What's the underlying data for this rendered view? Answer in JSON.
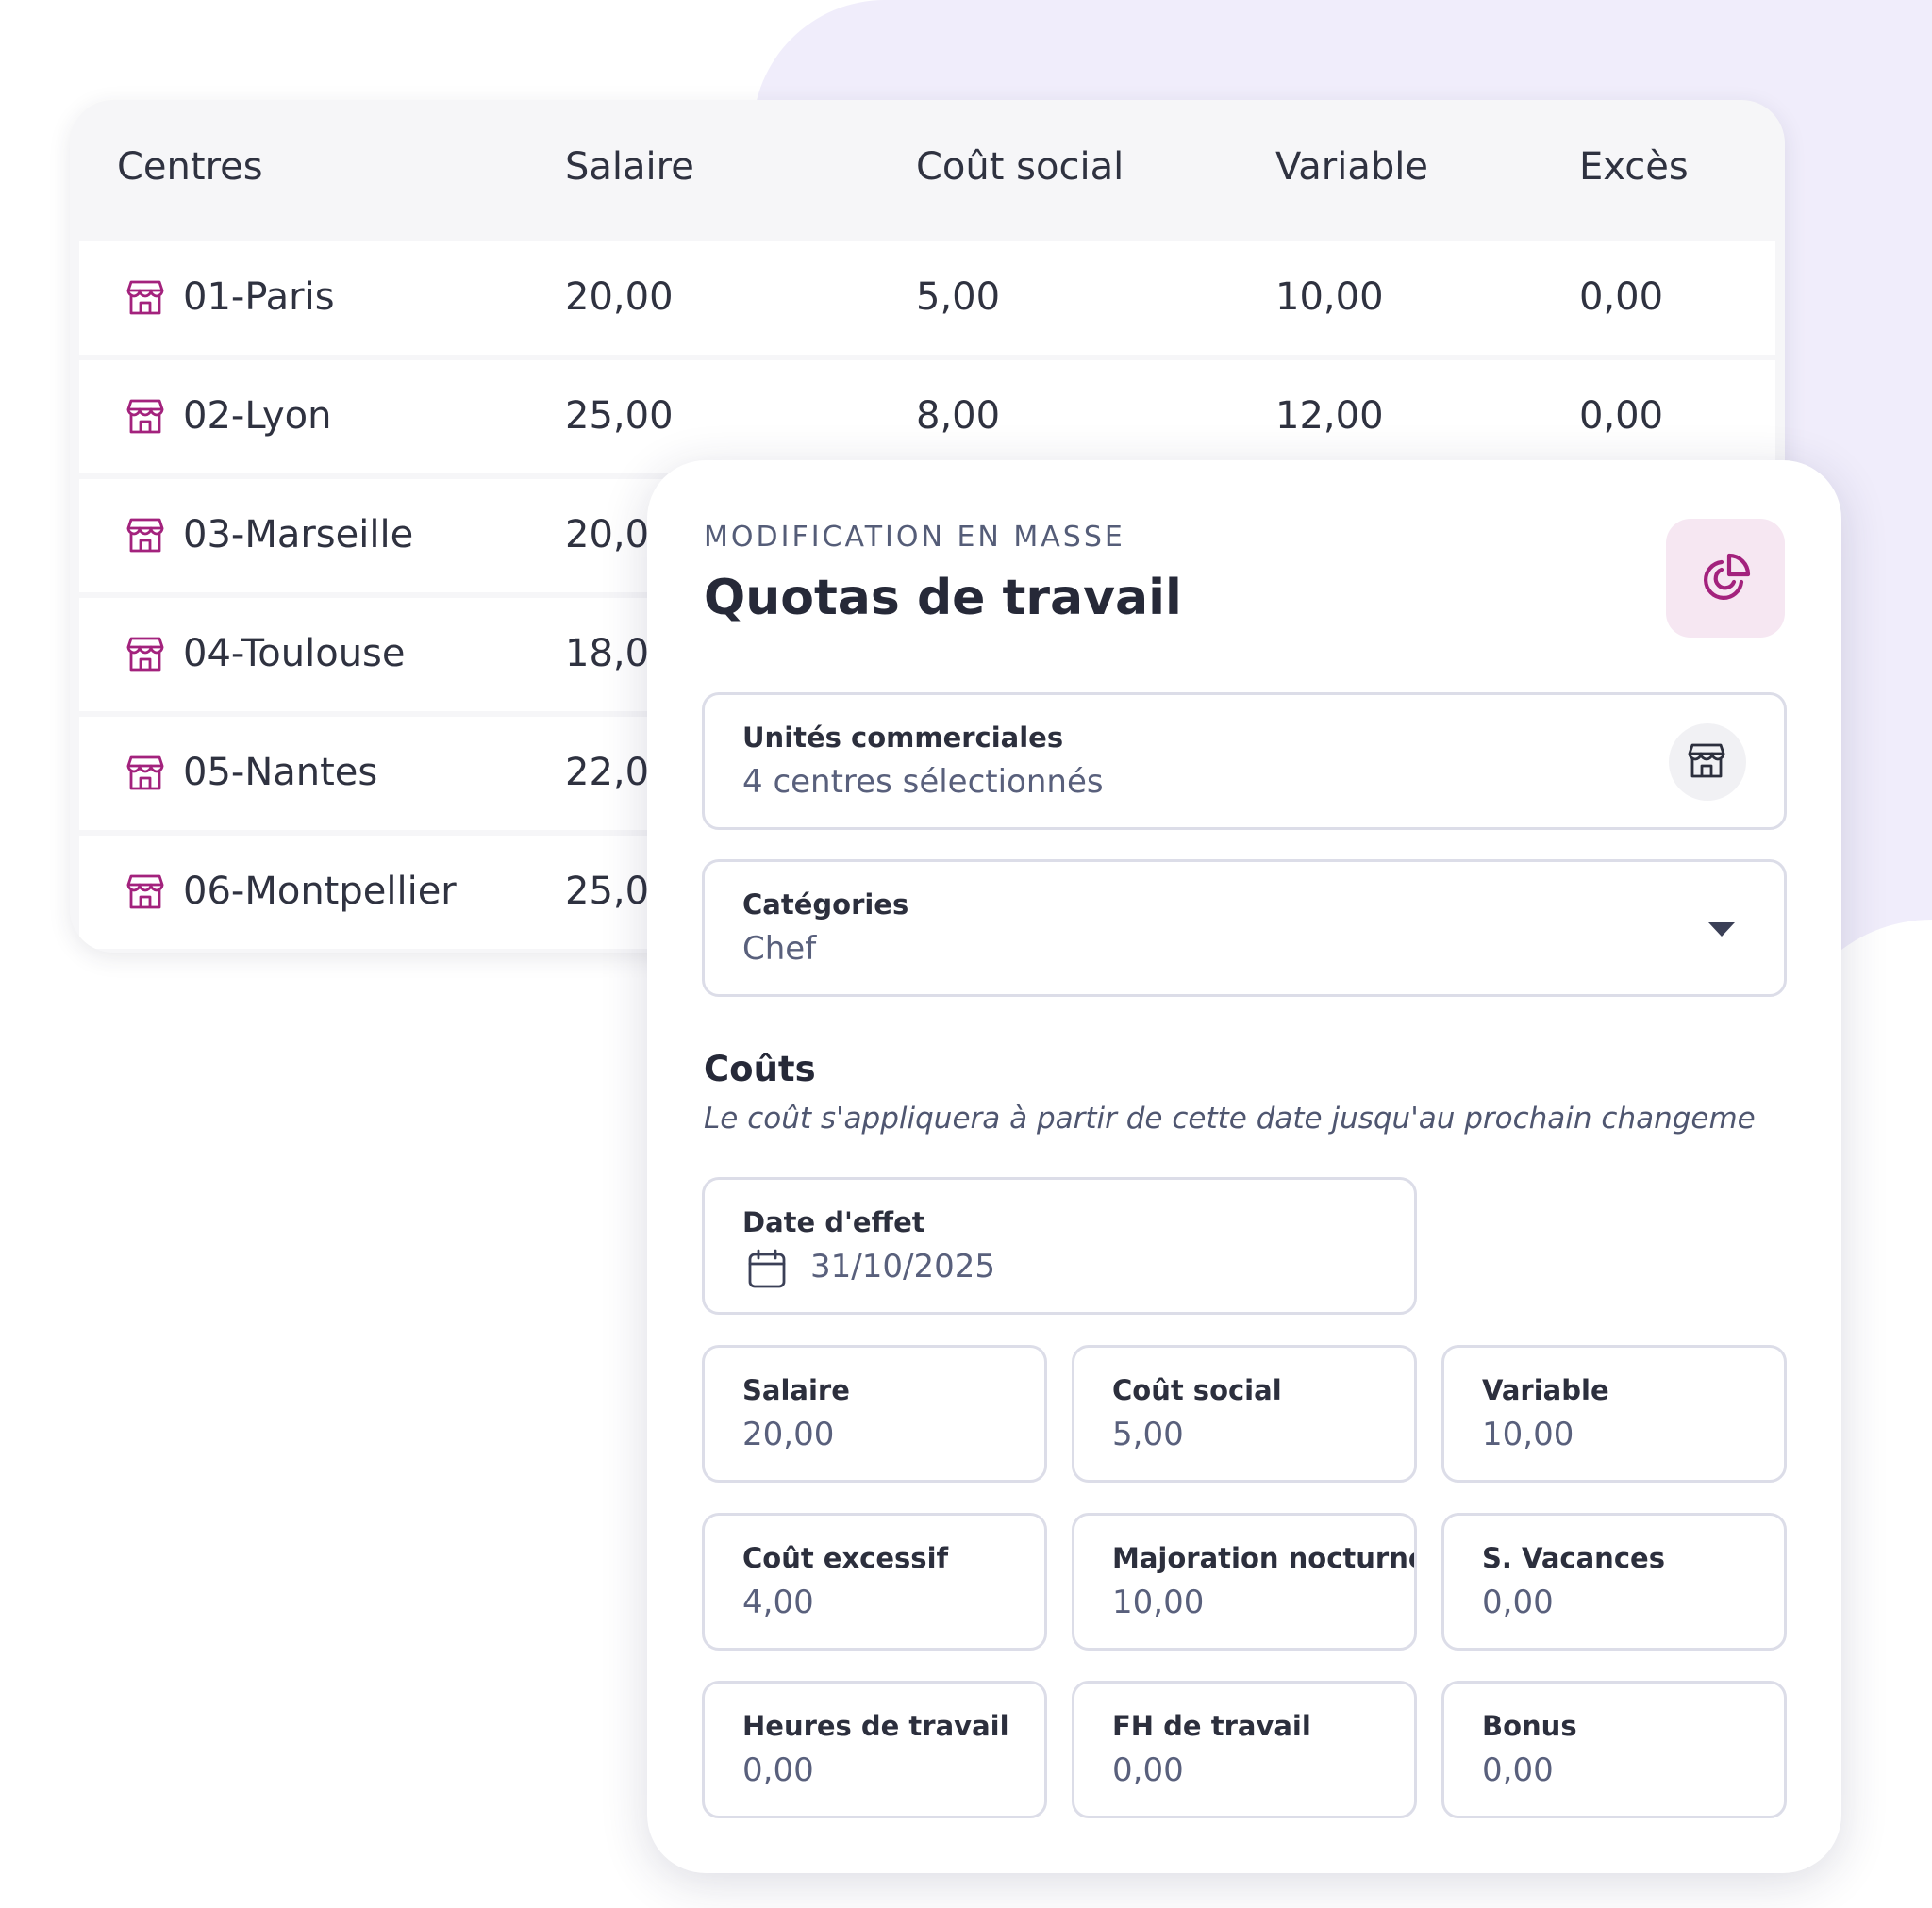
{
  "table": {
    "headers": [
      "Centres",
      "Salaire",
      "Coût social",
      "Variable",
      "Excès"
    ],
    "rows": [
      {
        "centre": "01-Paris",
        "salaire": "20,00",
        "cout_social": "5,00",
        "variable": "10,00",
        "exces": "0,00"
      },
      {
        "centre": "02-Lyon",
        "salaire": "25,00",
        "cout_social": "8,00",
        "variable": "12,00",
        "exces": "0,00"
      },
      {
        "centre": "03-Marseille",
        "salaire": "20,0"
      },
      {
        "centre": "04-Toulouse",
        "salaire": "18,0("
      },
      {
        "centre": "05-Nantes",
        "salaire": "22,0("
      },
      {
        "centre": "06-Montpellier",
        "salaire": "25,0("
      }
    ],
    "row_icon": "store-icon"
  },
  "modal": {
    "eyebrow": "MODIFICATION EN MASSE",
    "title": "Quotas de travail",
    "action_icon": "pie-chart-icon",
    "units": {
      "label": "Unités commerciales",
      "value": "4 centres sélectionnés",
      "icon": "store-icon"
    },
    "categories": {
      "label": "Catégories",
      "value": "Chef",
      "icon": "caret-down-icon"
    },
    "costs": {
      "title": "Coûts",
      "note": "Le coût s'appliquera à partir de cette date jusqu'au prochain changeme"
    },
    "effective_date": {
      "label": "Date d'effet",
      "value": "31/10/2025",
      "icon": "calendar-icon"
    },
    "fields": [
      {
        "label": "Salaire",
        "value": "20,00"
      },
      {
        "label": "Coût social",
        "value": "5,00"
      },
      {
        "label": "Variable",
        "value": "10,00"
      },
      {
        "label": "Coût excessif",
        "value": "4,00"
      },
      {
        "label": "Majoration nocturne",
        "value": "10,00"
      },
      {
        "label": "S. Vacances",
        "value": "0,00"
      },
      {
        "label": "Heures de travail",
        "value": "0,00"
      },
      {
        "label": "FH de travail",
        "value": "0,00"
      },
      {
        "label": "Bonus",
        "value": "0,00"
      }
    ]
  },
  "colors": {
    "accent": "#a3227d",
    "accent_bg": "#f6e7f2",
    "backdrop": "#f0edfb"
  }
}
